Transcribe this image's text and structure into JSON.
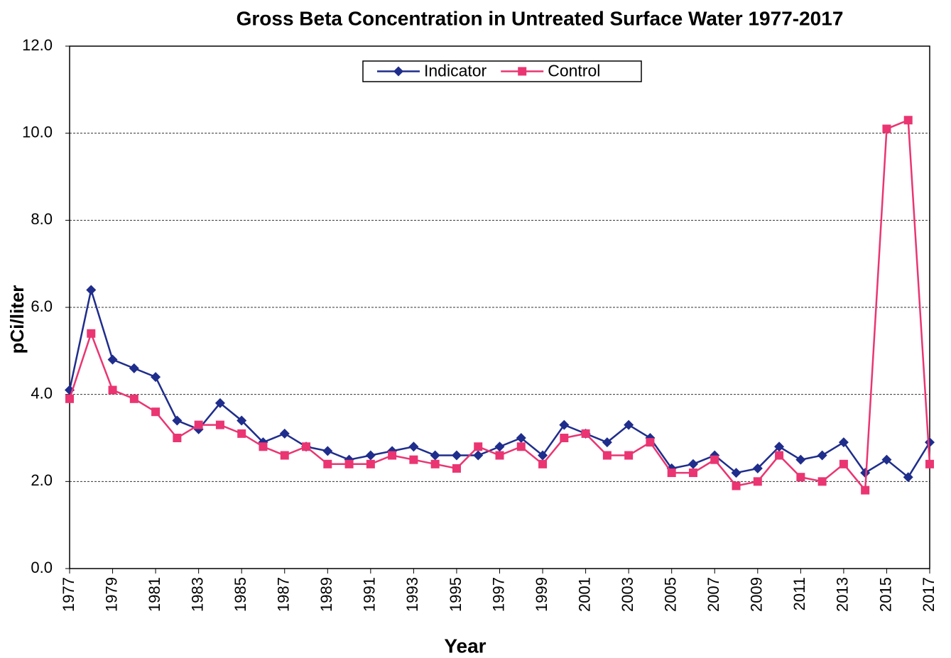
{
  "chart_data": {
    "type": "line",
    "title": "Gross Beta Concentration in Untreated Surface Water 1977-2017",
    "x_label": "Year",
    "y_label": "pCi/liter",
    "x": [
      1977,
      1978,
      1979,
      1980,
      1981,
      1982,
      1983,
      1984,
      1985,
      1986,
      1987,
      1988,
      1989,
      1990,
      1991,
      1992,
      1993,
      1994,
      1995,
      1996,
      1997,
      1998,
      1999,
      2000,
      2001,
      2002,
      2003,
      2004,
      2005,
      2006,
      2007,
      2008,
      2009,
      2010,
      2011,
      2012,
      2013,
      2014,
      2015,
      2016,
      2017
    ],
    "series": [
      {
        "name": "Indicator",
        "color": "#1f2d8c",
        "marker": "diamond",
        "values": [
          4.1,
          6.4,
          4.8,
          4.6,
          4.4,
          3.4,
          3.2,
          3.8,
          3.4,
          2.9,
          3.1,
          2.8,
          2.7,
          2.5,
          2.6,
          2.7,
          2.8,
          2.6,
          2.6,
          2.6,
          2.8,
          3.0,
          2.6,
          3.3,
          3.1,
          2.9,
          3.3,
          3.0,
          2.3,
          2.4,
          2.6,
          2.2,
          2.3,
          2.8,
          2.5,
          2.6,
          2.9,
          2.2,
          2.5,
          2.1,
          2.9
        ]
      },
      {
        "name": "Control",
        "color": "#ea3572",
        "marker": "square",
        "values": [
          3.9,
          5.4,
          4.1,
          3.9,
          3.6,
          3.0,
          3.3,
          3.3,
          3.1,
          2.8,
          2.6,
          2.8,
          2.4,
          2.4,
          2.4,
          2.6,
          2.5,
          2.4,
          2.3,
          2.8,
          2.6,
          2.8,
          2.4,
          3.0,
          3.1,
          2.6,
          2.6,
          2.9,
          2.2,
          2.2,
          2.5,
          1.9,
          2.0,
          2.6,
          2.1,
          2.0,
          2.4,
          1.8,
          10.1,
          10.3,
          2.4
        ]
      }
    ],
    "xlim": [
      1977,
      2017
    ],
    "xticks": [
      1977,
      1979,
      1981,
      1983,
      1985,
      1987,
      1989,
      1991,
      1993,
      1995,
      1997,
      1999,
      2001,
      2003,
      2005,
      2007,
      2009,
      2011,
      2013,
      2015,
      2017
    ],
    "ylim": [
      0,
      12
    ],
    "yticks": [
      {
        "value": 0,
        "label": "0.0"
      },
      {
        "value": 2,
        "label": "2.0"
      },
      {
        "value": 4,
        "label": "4.0"
      },
      {
        "value": 6,
        "label": "6.0"
      },
      {
        "value": 8,
        "label": "8.0"
      },
      {
        "value": 10,
        "label": "10.0"
      },
      {
        "value": 12,
        "label": "12.0"
      }
    ],
    "grid": true,
    "legend": "top"
  }
}
